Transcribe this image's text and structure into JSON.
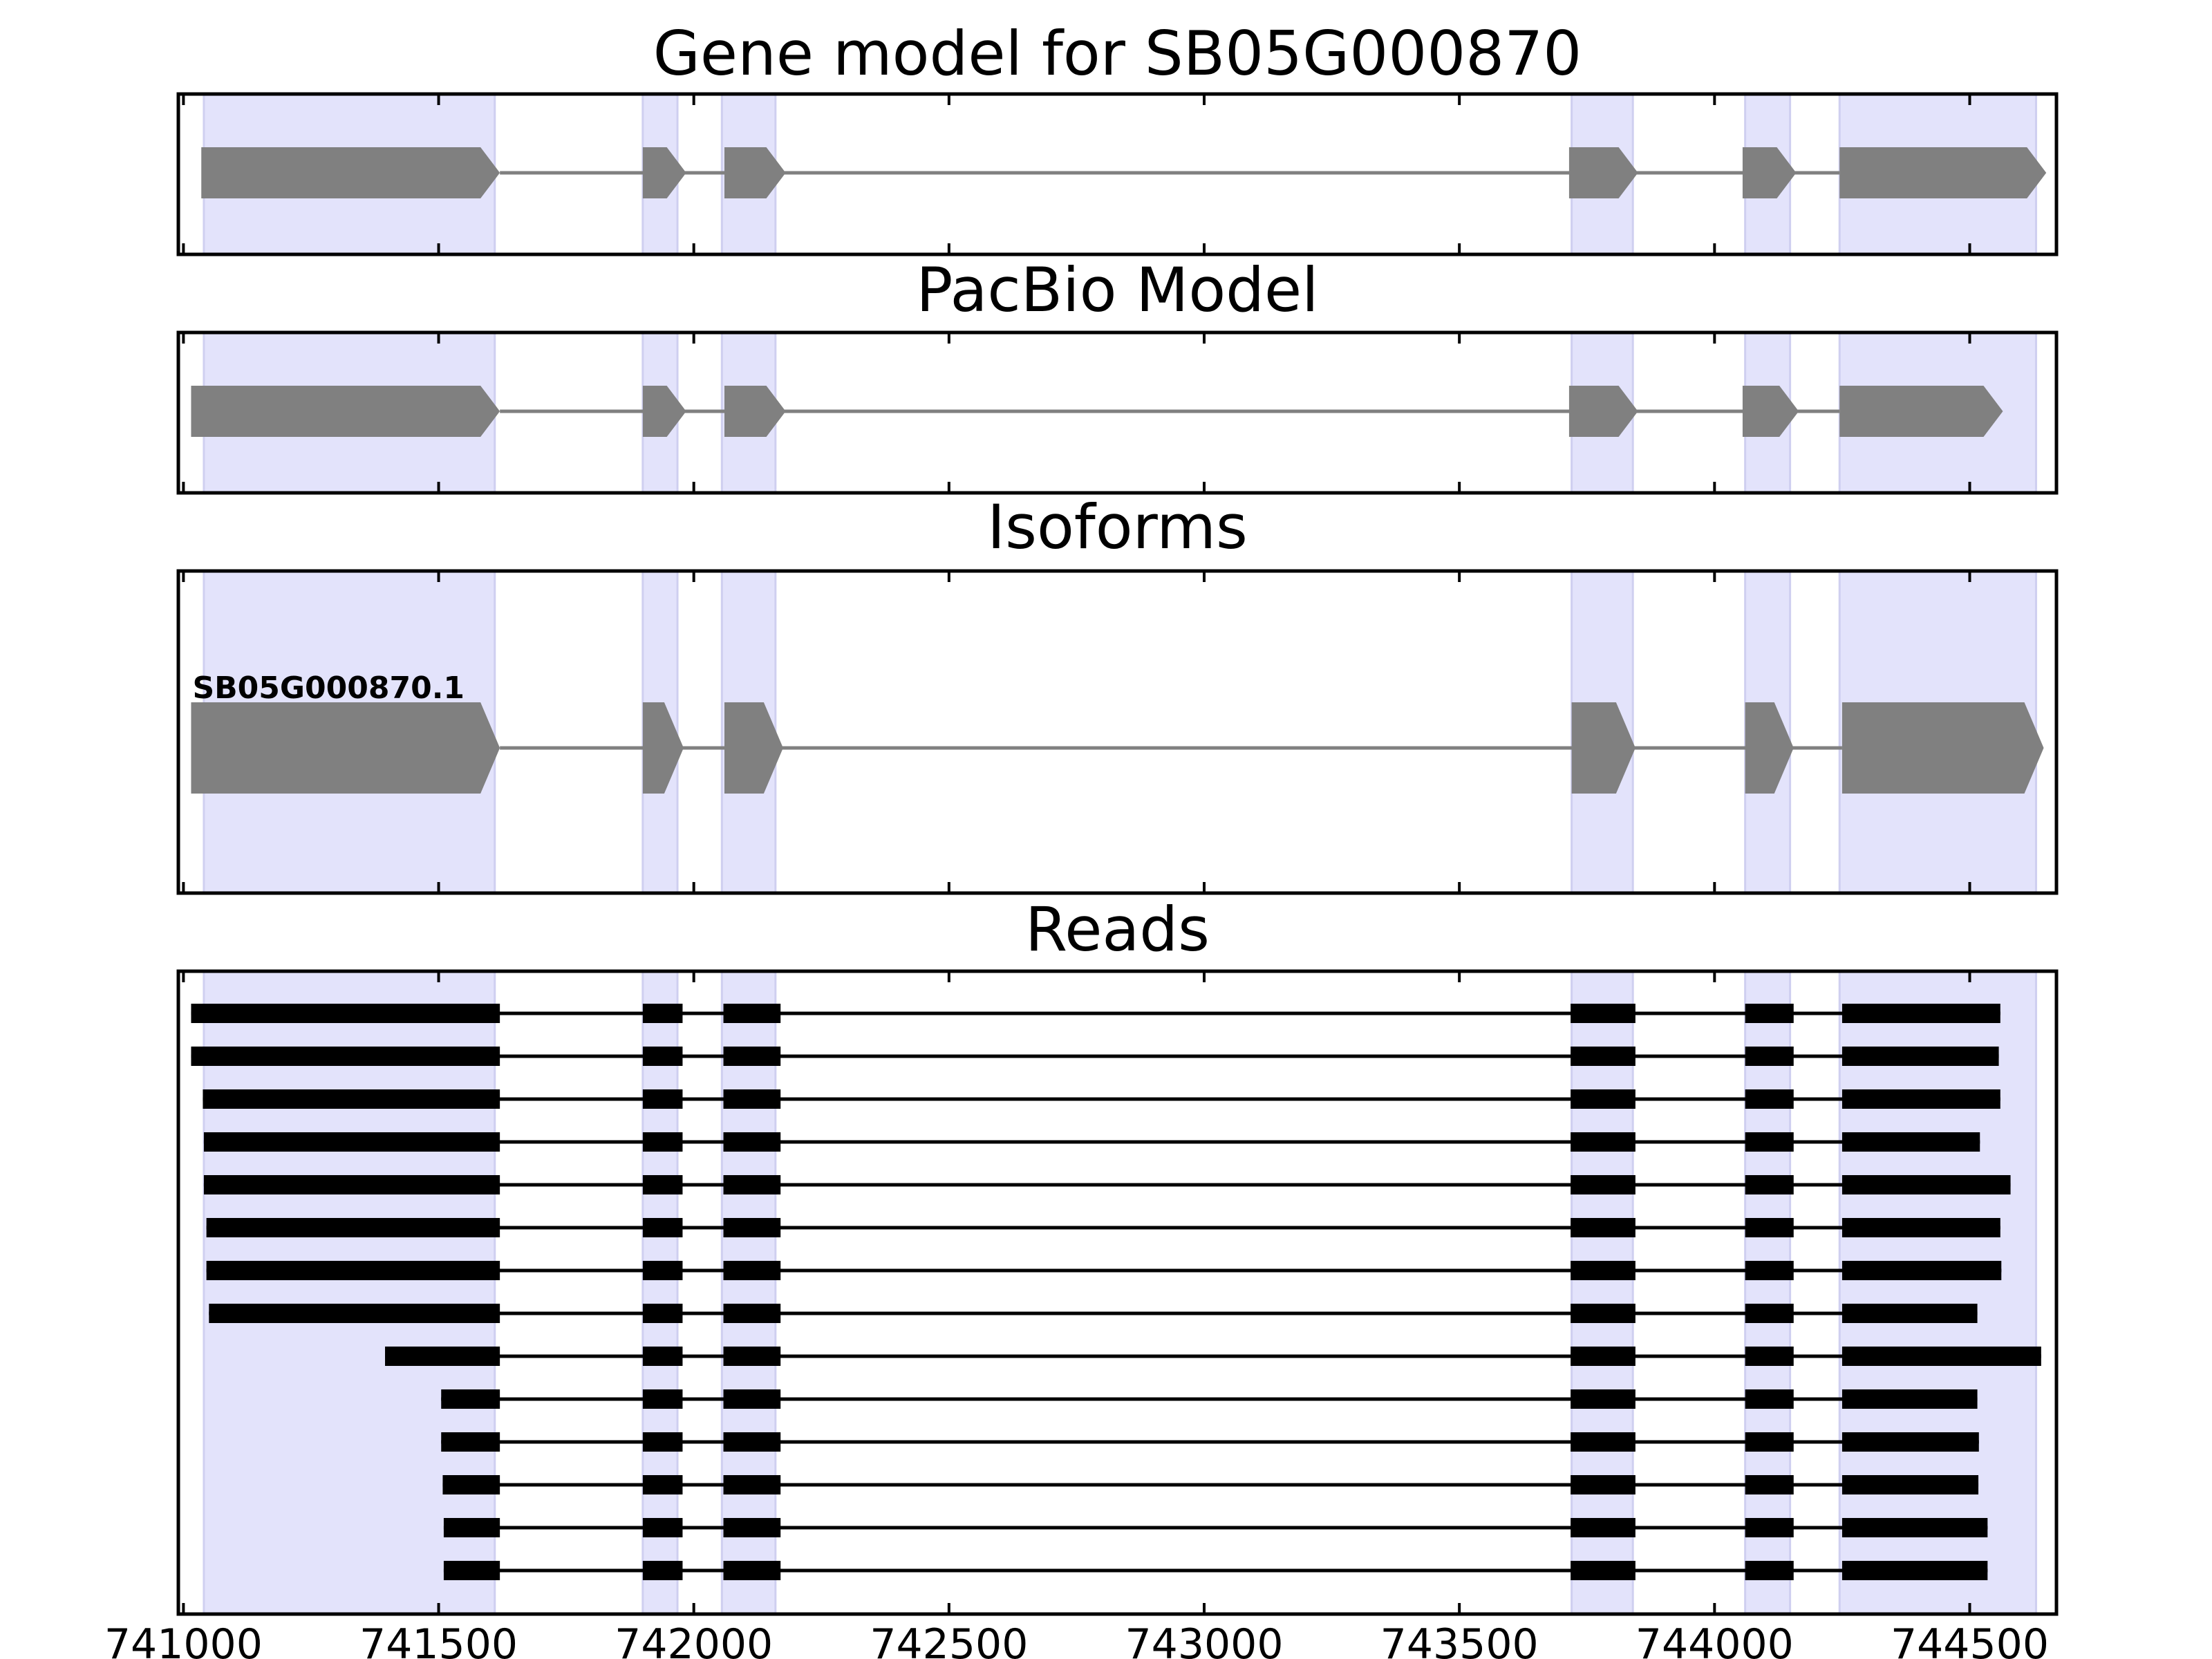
{
  "chart_data": {
    "type": "gene-model-tracks",
    "xlim": [
      740990,
      744670
    ],
    "x_ticks": [
      741000,
      741500,
      742000,
      742500,
      743000,
      743500,
      744000,
      744500
    ],
    "x_tick_labels": [
      "741000",
      "741500",
      "742000",
      "742500",
      "743000",
      "743500",
      "744000",
      "744500"
    ],
    "highlight_color": "#e3e3fb",
    "exon_regions": [
      [
        741040,
        741610
      ],
      [
        741900,
        741968
      ],
      [
        742055,
        742160
      ],
      [
        743720,
        743840
      ],
      [
        744060,
        744148
      ],
      [
        744245,
        744630
      ]
    ],
    "panels": [
      {
        "title": "Gene model for SB05G000870",
        "feature_color": "#808080",
        "strand": "+",
        "exons": [
          [
            741035,
            741620
          ],
          [
            741900,
            741985
          ],
          [
            742060,
            742180
          ],
          [
            743715,
            743850
          ],
          [
            744055,
            744160
          ],
          [
            744245,
            744650
          ]
        ]
      },
      {
        "title": "PacBio Model",
        "feature_color": "#808080",
        "strand": "+",
        "exons": [
          [
            741015,
            741620
          ],
          [
            741900,
            741985
          ],
          [
            742060,
            742180
          ],
          [
            743715,
            743850
          ],
          [
            744055,
            744165
          ],
          [
            744245,
            744565
          ]
        ]
      },
      {
        "title": "Isoforms",
        "feature_color": "#808080",
        "strand": "+",
        "isoforms": [
          {
            "name": "SB05G000870.1",
            "exons": [
              [
                741015,
                741620
              ],
              [
                741900,
                741980
              ],
              [
                742060,
                742175
              ],
              [
                743720,
                743845
              ],
              [
                744060,
                744155
              ],
              [
                744250,
                744645
              ]
            ]
          }
        ]
      },
      {
        "title": "Reads",
        "feature_color": "#000000",
        "reads": [
          {
            "start": 741015,
            "end": 744560
          },
          {
            "start": 741015,
            "end": 744557
          },
          {
            "start": 741038,
            "end": 744560
          },
          {
            "start": 741040,
            "end": 744520
          },
          {
            "start": 741040,
            "end": 744580
          },
          {
            "start": 741045,
            "end": 744560
          },
          {
            "start": 741045,
            "end": 744562
          },
          {
            "start": 741050,
            "end": 744515
          },
          {
            "start": 741395,
            "end": 744640
          },
          {
            "start": 741505,
            "end": 744515
          },
          {
            "start": 741505,
            "end": 744518
          },
          {
            "start": 741508,
            "end": 744517
          },
          {
            "start": 741510,
            "end": 744535
          },
          {
            "start": 741510,
            "end": 744535
          }
        ],
        "read_inner_exons": [
          [
            741900,
            741978
          ],
          [
            742058,
            742170
          ],
          [
            743718,
            743845
          ],
          [
            744060,
            744155
          ]
        ],
        "read_first_exon_end": 741620,
        "read_last_exon_start": 744250
      }
    ]
  }
}
